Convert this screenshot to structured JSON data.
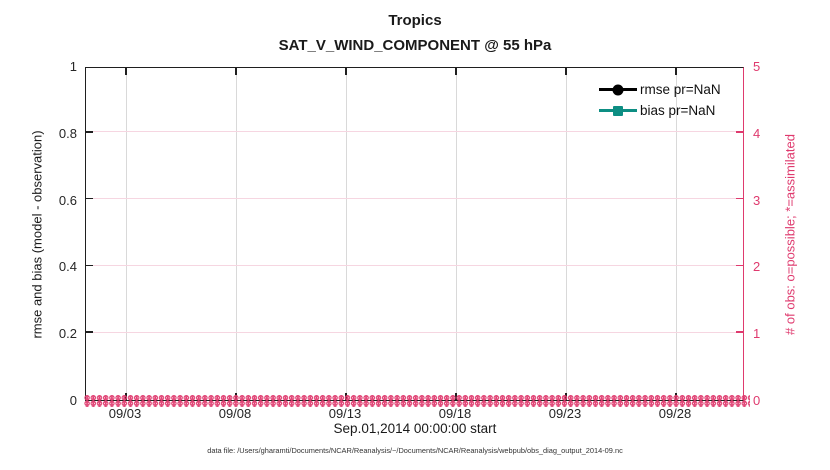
{
  "caption": "data file: /Users/gharamti/Documents/NCAR/Reanalysis/~/Documents/NCAR/Reanalysis/webpub/obs_diag_output_2014-09.nc",
  "colors": {
    "obs_pink": "#DF3A6E",
    "axis_black": "#1f1f1f",
    "grid_gray": "#d9d9d9",
    "grid_pink": "#f6d6e1"
  },
  "chart_data": {
    "type": "line",
    "title": "Tropics",
    "subtitle": "SAT_V_WIND_COMPONENT @ 55 hPa",
    "xlabel": "Sep.01,2014 00:00:00 start",
    "ylabel_left": "rmse and bias (model - observation)",
    "ylabel_right": "# of obs: o=possible; *=assimilated",
    "x_tick_labels": [
      "09/03",
      "09/08",
      "09/13",
      "09/18",
      "09/23",
      "09/28"
    ],
    "x_range_note": "Sep 01 2014 to Sep 30 2014, ticks every 5 days",
    "ylim_left": [
      0,
      1
    ],
    "ylim_right": [
      0,
      5
    ],
    "y_left_ticks": [
      0,
      0.2,
      0.4,
      0.6,
      0.8,
      1
    ],
    "y_left_tick_labels": [
      "0",
      "0.2",
      "0.4",
      "0.6",
      "0.8",
      "1"
    ],
    "y_right_ticks": [
      0,
      1,
      2,
      3,
      4,
      5
    ],
    "y_right_tick_labels": [
      "0",
      "1",
      "2",
      "3",
      "4",
      "5"
    ],
    "grid": true,
    "legend_position": "upper right, no box",
    "series": [
      {
        "id": "rmse",
        "name": "rmse pr=NaN",
        "marker": "circle",
        "color": "#000000",
        "values": [],
        "note": "all values NaN - no curve drawn"
      },
      {
        "id": "bias",
        "name": "bias pr=NaN",
        "marker": "square",
        "color": "#0D8E83",
        "values": [],
        "note": "all values NaN - no curve drawn"
      }
    ],
    "obs_band": {
      "description": "dense row of overlapping pink o (possible) and * (assimilated) markers along y=0 across the full date range",
      "y_value": 0,
      "possible_marker": "o",
      "assimilated_marker": "*",
      "color": "#DF3A6E"
    }
  }
}
